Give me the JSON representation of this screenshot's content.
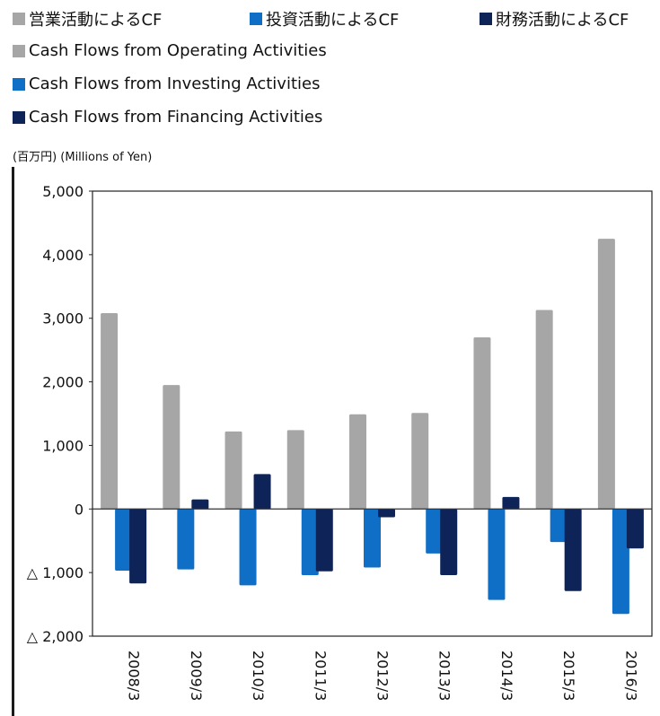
{
  "legend_top": [
    {
      "label": "営業活動によるCF",
      "color": "#a6a6a6"
    },
    {
      "label": "投資活動によるCF",
      "color": "#0f6fc6"
    },
    {
      "label": "財務活動によるCF",
      "color": "#0e2357"
    }
  ],
  "legend_en": [
    {
      "label": "Cash Flows from Operating Activities",
      "color": "#a6a6a6"
    },
    {
      "label": "Cash Flows from Investing Activities",
      "color": "#0f6fc6"
    },
    {
      "label": "Cash Flows from Financing Activities",
      "color": "#0e2357"
    }
  ],
  "unit_label": "(百万円) (Millions of  Yen)",
  "chart_data": {
    "type": "bar",
    "categories": [
      "2008/3",
      "2009/3",
      "2010/3",
      "2011/3",
      "2012/3",
      "2013/3",
      "2014/3",
      "2015/3",
      "2016/3"
    ],
    "series": [
      {
        "name": "営業活動によるCF",
        "color": "#a6a6a6",
        "values": [
          3080,
          1950,
          1220,
          1240,
          1490,
          1510,
          2700,
          3130,
          4250
        ]
      },
      {
        "name": "投資活動によるCF",
        "color": "#0f6fc6",
        "values": [
          -970,
          -950,
          -1200,
          -1040,
          -920,
          -700,
          -1430,
          -520,
          -1650
        ]
      },
      {
        "name": "財務活動によるCF",
        "color": "#0e2357",
        "values": [
          -1170,
          150,
          550,
          -980,
          -130,
          -1040,
          190,
          -1290,
          -620
        ]
      }
    ],
    "ylim": [
      -2000,
      5000
    ],
    "yticks": [
      5000,
      4000,
      3000,
      2000,
      1000,
      0,
      -1000,
      -2000
    ],
    "ytick_labels": [
      "5,000",
      "4,000",
      "3,000",
      "2,000",
      "1,000",
      "0",
      "△ 1,000",
      "△ 2,000"
    ],
    "xlabel": "",
    "ylabel": ""
  }
}
